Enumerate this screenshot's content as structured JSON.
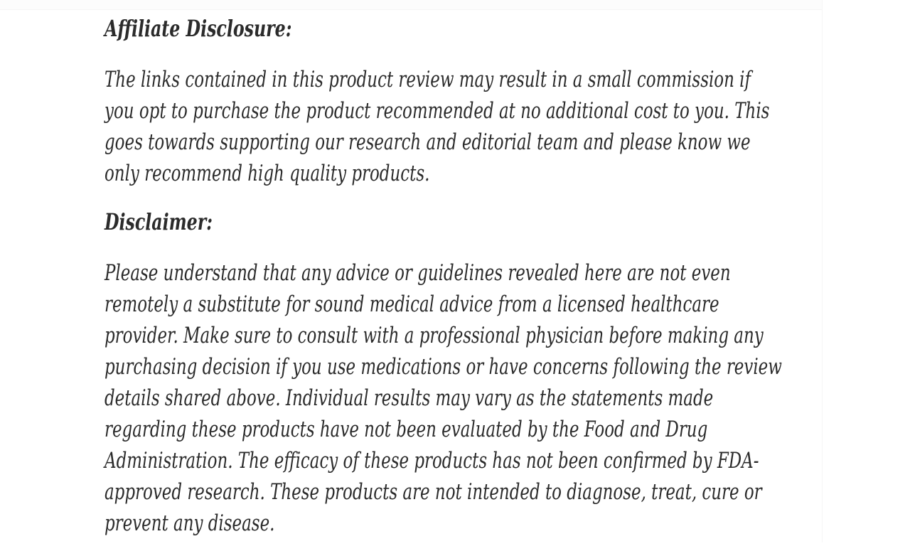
{
  "page": {
    "background_color": "#ffffff",
    "text_color": "#2b2b2b"
  },
  "article": {
    "sections": [
      {
        "heading": "Affiliate Disclosure:",
        "lines": [
          "The links contained in this product review may result in a small commission if",
          "you opt to purchase the product recommended at no additional cost to you. This",
          "goes towards supporting our research and editorial team and please know we",
          "only recommend high quality products."
        ]
      },
      {
        "heading": "Disclaimer:",
        "lines": [
          "Please understand that any advice or guidelines revealed here are not even",
          "remotely a substitute for sound medical advice from a licensed healthcare",
          "provider. Make sure to consult with a professional physician before making any",
          "purchasing decision if you use medications or have concerns following the review",
          "details shared above. Individual results may vary as the statements made",
          "regarding these products have not been evaluated by the Food and Drug",
          "Administration. The efficacy of these products has not been confirmed by FDA-",
          "approved research. These products are not intended to diagnose, treat, cure or",
          "prevent any disease."
        ]
      }
    ]
  }
}
